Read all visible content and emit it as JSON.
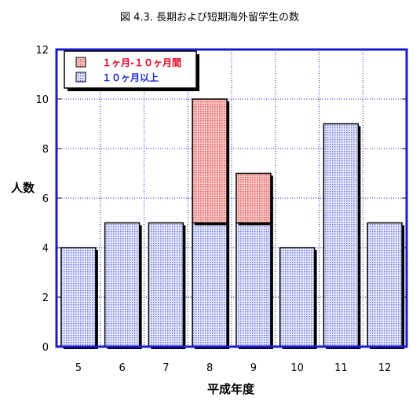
{
  "chart_data": {
    "type": "bar",
    "stacked": true,
    "title": "図 4.3. 長期および短期海外留学生の数",
    "xlabel": "平成年度",
    "ylabel": "人数",
    "categories": [
      "5",
      "6",
      "7",
      "8",
      "9",
      "10",
      "11",
      "12"
    ],
    "series": [
      {
        "name": "１０ヶ月以上",
        "values": [
          4,
          5,
          5,
          5,
          5,
          4,
          9,
          5
        ],
        "color": "#c8ccf2"
      },
      {
        "name": "１ヶ月-１０ヶ月間",
        "values": [
          0,
          0,
          0,
          5,
          2,
          0,
          0,
          0
        ],
        "color": "#f0b0b0"
      }
    ],
    "ylim": [
      0,
      12
    ],
    "yticks": [
      0,
      2,
      4,
      6,
      8,
      10,
      12
    ],
    "grid": true,
    "legend_position": "top-left",
    "colors": {
      "frame": "#1a1ad0",
      "grid": "#1a1ad0",
      "bar_edge": "#000000"
    }
  }
}
